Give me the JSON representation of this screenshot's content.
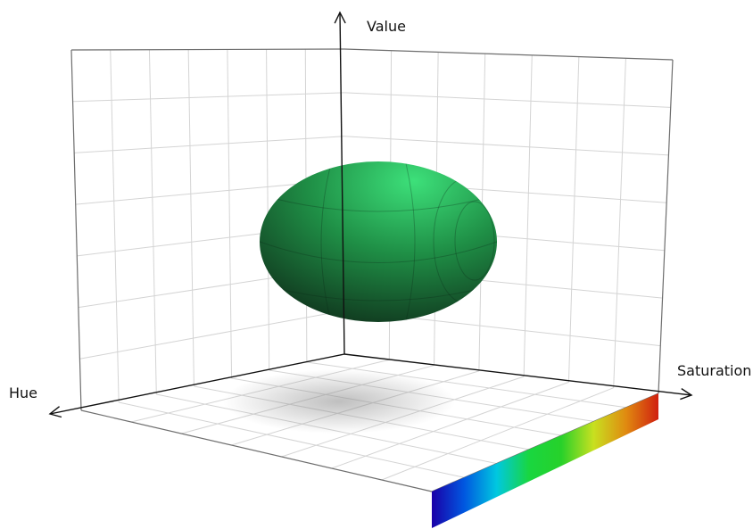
{
  "axes": {
    "value_label": "Value",
    "saturation_label": "Saturation",
    "hue_label": "Hue"
  },
  "colors": {
    "background": "#ffffff",
    "grid": "#d4d4d4",
    "frame": "#6e6e6e",
    "axis": "#111111",
    "ellipsoid_light": "#3de07a",
    "ellipsoid_mid": "#1f8f46",
    "ellipsoid_dark": "#0e2a18",
    "shadow": "#8a8a8a"
  },
  "hue_colorbar": {
    "stops": [
      "#1a00a8",
      "#0057e0",
      "#00c8e0",
      "#19d640",
      "#27d12a",
      "#c8e020",
      "#e08a10",
      "#d02010"
    ]
  }
}
